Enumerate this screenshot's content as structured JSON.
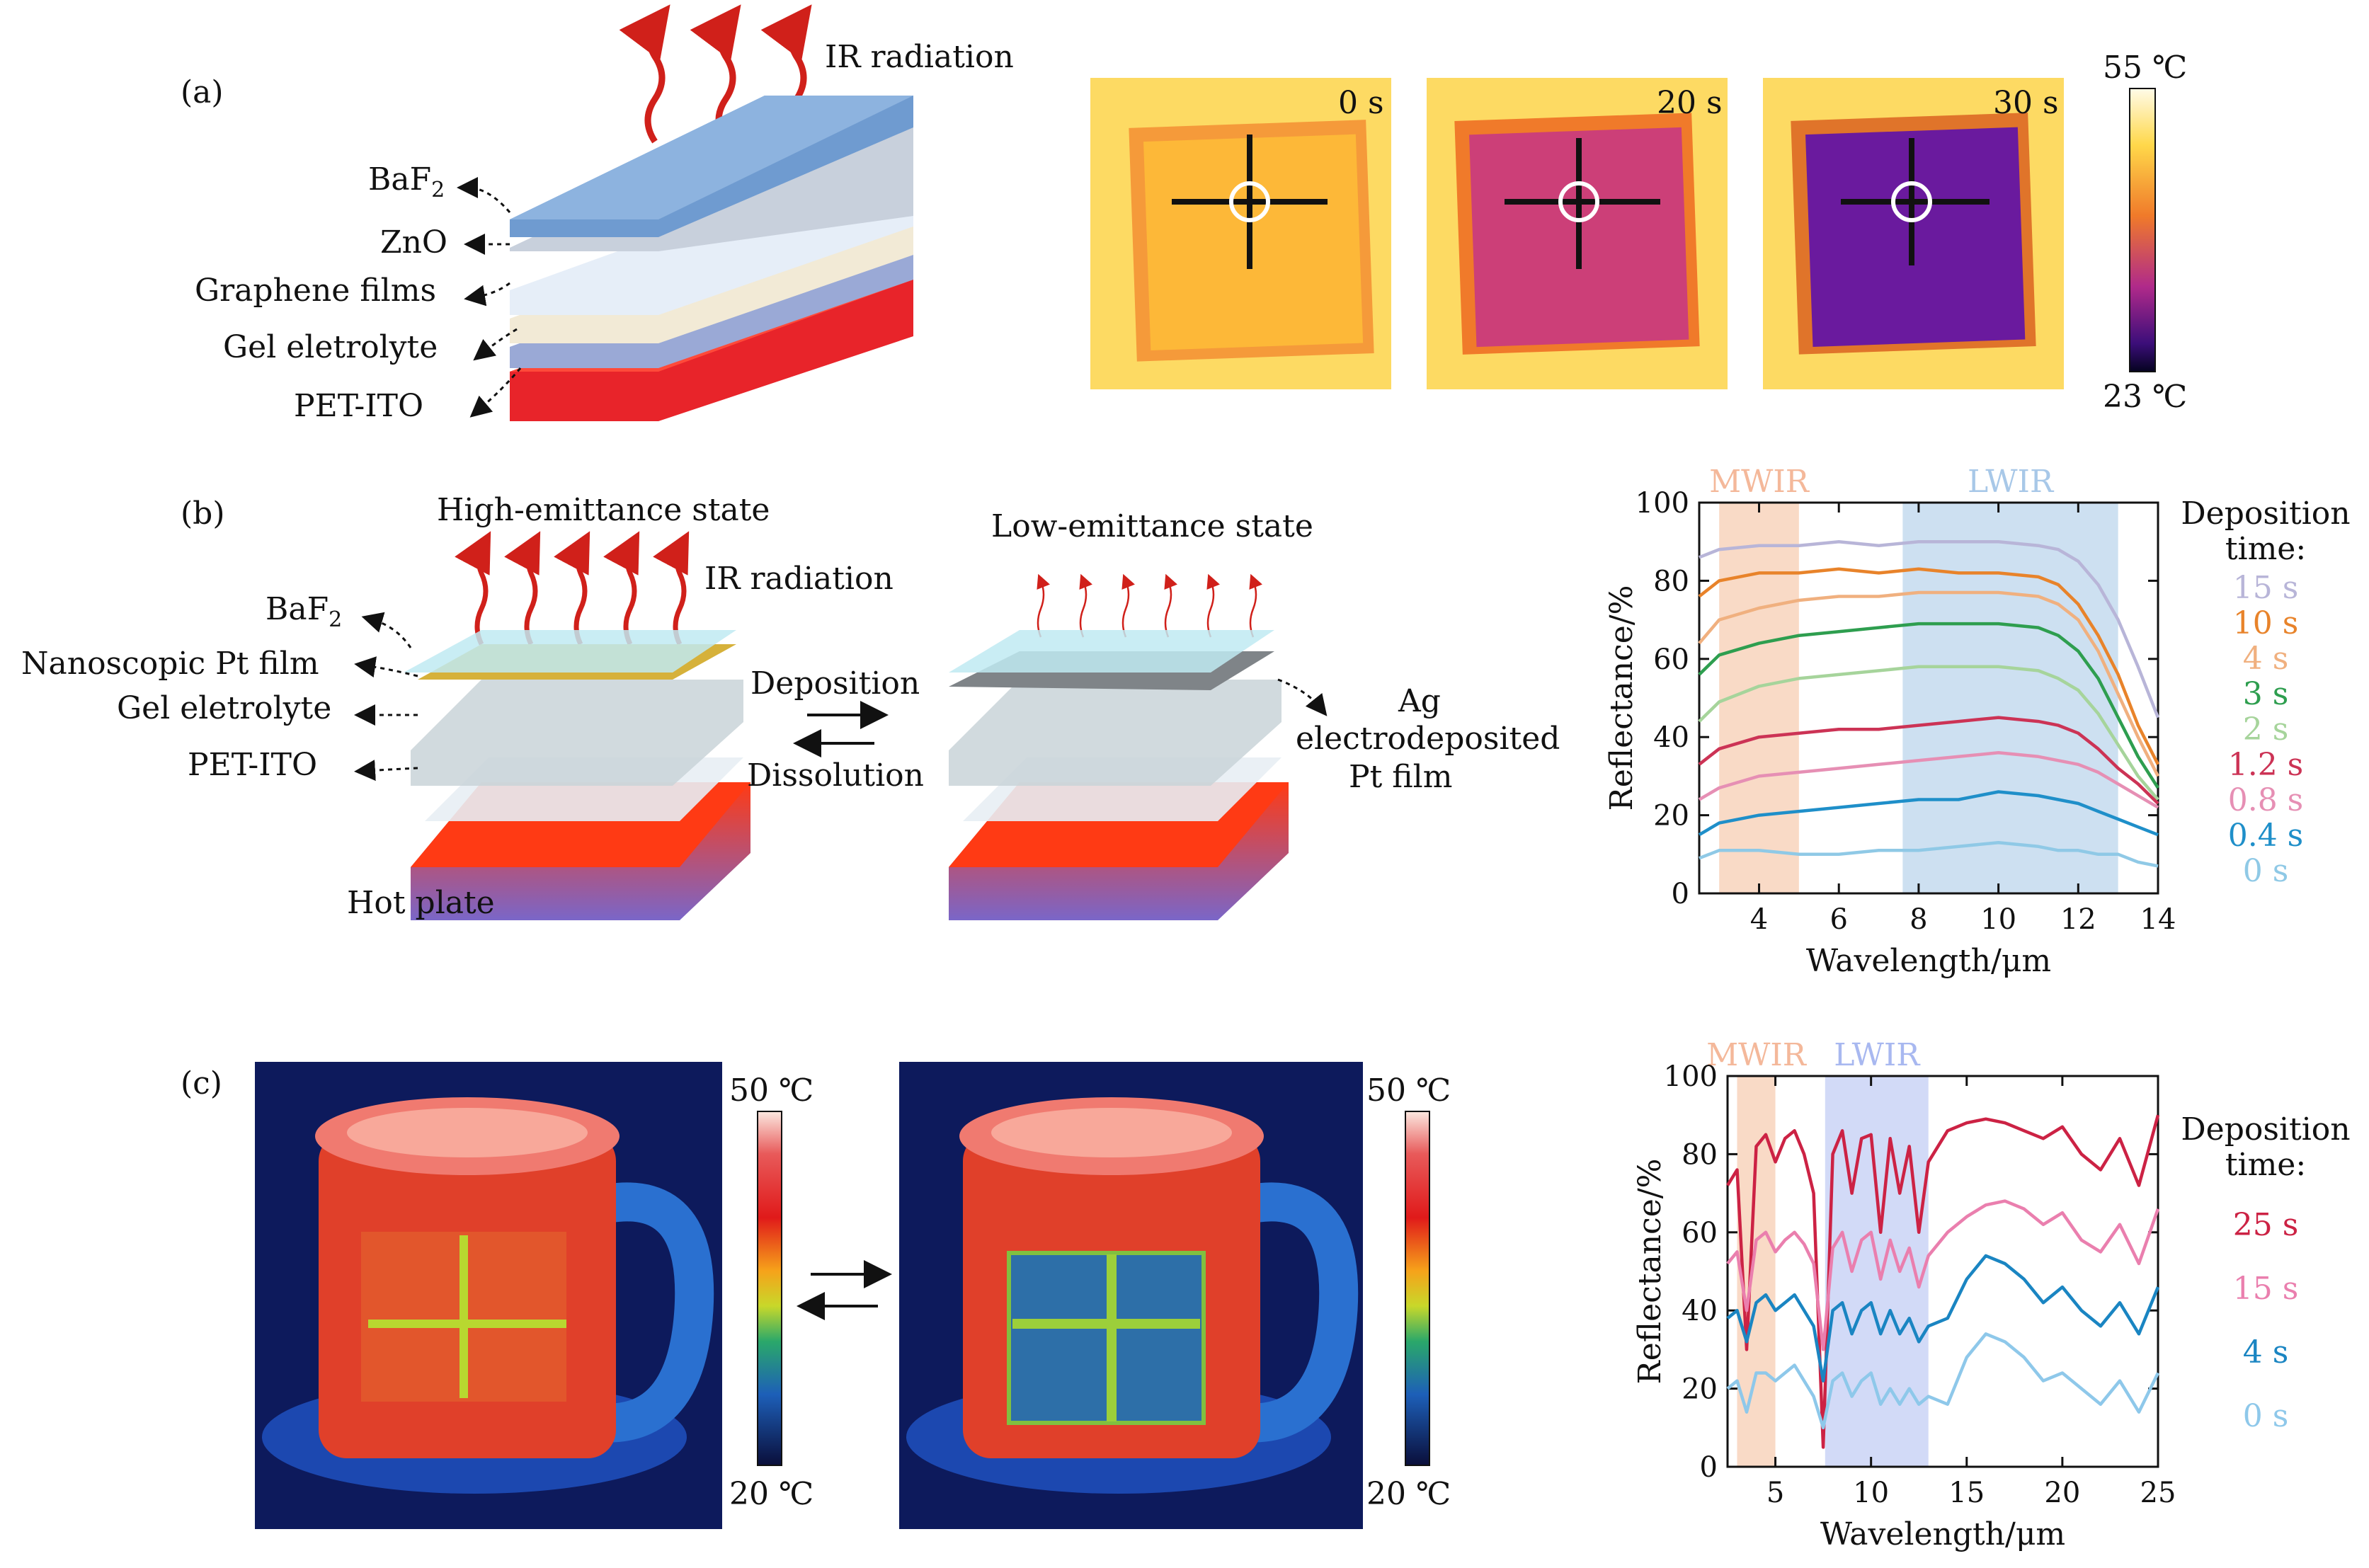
{
  "panel_a": {
    "panel_label": "(a)",
    "ir_label": "IR radiation",
    "layers": [
      "BaF",
      "ZnO",
      "Graphene films",
      "Gel eletrolyte",
      "PET-ITO"
    ],
    "baf_sub": "2",
    "thermal_times": [
      "0 s",
      "20 s",
      "30 s"
    ],
    "colorbar_max": "55 ℃",
    "colorbar_min": "23 ℃"
  },
  "panel_b": {
    "panel_label": "(b)",
    "high_state": "High-emittance state",
    "low_state": "Low-emittance state",
    "ir_label": "IR radiation",
    "layers": [
      "BaF",
      "Nanoscopic Pt film",
      "Gel eletrolyte",
      "PET-ITO"
    ],
    "baf_sub": "2",
    "deposition": "Deposition",
    "dissolution": "Dissolution",
    "ag_label": [
      "Ag",
      "electrodeposited",
      "Pt film"
    ],
    "hot_plate": "Hot plate"
  },
  "panel_c": {
    "panel_label": "(c)",
    "colorbar_max": "50 ℃",
    "colorbar_min": "20 ℃"
  },
  "colors": {
    "s0": "#8fc9e6",
    "s04": "#1f8fc9",
    "s08": "#e68fb4",
    "s12": "#cc3355",
    "s2": "#a6d49b",
    "s3": "#2e9e4f",
    "s4": "#f0b07f",
    "s10": "#e8832a",
    "s15": "#b8b5d8",
    "c25": "#cc2244",
    "c15": "#ea7fae",
    "c4": "#1a85c2",
    "c0": "#8ec8ea",
    "mwir_band": "#f7cdb3",
    "lwir_band": "#bcd6ec",
    "lwir_band_c": "#c3cdf4"
  },
  "chart_data": [
    {
      "type": "line",
      "xlabel": "Wavelength/μm",
      "ylabel": "Reflectance/%",
      "xlim": [
        2.5,
        14
      ],
      "ylim": [
        0,
        100
      ],
      "xticks": [
        4,
        6,
        8,
        10,
        12,
        14
      ],
      "yticks": [
        0,
        20,
        40,
        60,
        80,
        100
      ],
      "bands": [
        {
          "label": "MWIR",
          "x0": 3,
          "x1": 5
        },
        {
          "label": "LWIR",
          "x0": 7.6,
          "x1": 13
        }
      ],
      "legend_title": [
        "Deposition",
        "time:"
      ],
      "x": [
        2.5,
        3,
        4,
        5,
        6,
        7,
        8,
        9,
        10,
        11,
        11.5,
        12,
        12.5,
        13,
        13.5,
        14
      ],
      "series": [
        {
          "name": "15 s",
          "color_key": "s15",
          "values": [
            86,
            88,
            89,
            89,
            90,
            89,
            90,
            90,
            90,
            89,
            88,
            85,
            79,
            70,
            58,
            45
          ]
        },
        {
          "name": "10 s",
          "color_key": "s10",
          "values": [
            76,
            80,
            82,
            82,
            83,
            82,
            83,
            82,
            82,
            81,
            79,
            74,
            66,
            56,
            43,
            33
          ]
        },
        {
          "name": "4 s",
          "color_key": "s4",
          "values": [
            64,
            70,
            73,
            75,
            76,
            76,
            77,
            77,
            77,
            76,
            74,
            70,
            62,
            51,
            40,
            30
          ]
        },
        {
          "name": "3 s",
          "color_key": "s3",
          "values": [
            56,
            61,
            64,
            66,
            67,
            68,
            69,
            69,
            69,
            68,
            66,
            62,
            55,
            45,
            35,
            27
          ]
        },
        {
          "name": "2 s",
          "color_key": "s2",
          "values": [
            44,
            49,
            53,
            55,
            56,
            57,
            58,
            58,
            58,
            57,
            55,
            52,
            46,
            38,
            30,
            24
          ]
        },
        {
          "name": "1.2 s",
          "color_key": "s12",
          "values": [
            33,
            37,
            40,
            41,
            42,
            42,
            43,
            44,
            45,
            44,
            43,
            41,
            37,
            32,
            28,
            23
          ]
        },
        {
          "name": "0.8 s",
          "color_key": "s08",
          "values": [
            24,
            27,
            30,
            31,
            32,
            33,
            34,
            35,
            36,
            35,
            34,
            33,
            31,
            28,
            25,
            22
          ]
        },
        {
          "name": "0.4 s",
          "color_key": "s04",
          "values": [
            15,
            18,
            20,
            21,
            22,
            23,
            24,
            24,
            26,
            25,
            24,
            23,
            21,
            19,
            17,
            15
          ]
        },
        {
          "name": "0 s",
          "color_key": "s0",
          "values": [
            9,
            11,
            11,
            10,
            10,
            11,
            11,
            12,
            13,
            12,
            11,
            11,
            10,
            10,
            8,
            7
          ]
        }
      ]
    },
    {
      "type": "line",
      "xlabel": "Wavelength/μm",
      "ylabel": "Reflectance/%",
      "xlim": [
        2.5,
        25
      ],
      "ylim": [
        0,
        100
      ],
      "xticks": [
        5,
        10,
        15,
        20,
        25
      ],
      "yticks": [
        0,
        20,
        40,
        60,
        80,
        100
      ],
      "bands": [
        {
          "label": "MWIR",
          "x0": 3,
          "x1": 5
        },
        {
          "label": "LWIR",
          "x0": 7.6,
          "x1": 13
        }
      ],
      "legend_title": [
        "Deposition",
        "time:"
      ],
      "x": [
        2.5,
        3,
        3.5,
        4,
        4.5,
        5,
        5.5,
        6,
        6.5,
        7,
        7.5,
        8,
        8.5,
        9,
        9.5,
        10,
        10.5,
        11,
        11.5,
        12,
        12.5,
        13,
        14,
        15,
        16,
        17,
        18,
        19,
        20,
        21,
        22,
        23,
        24,
        25
      ],
      "series": [
        {
          "name": "25 s",
          "color_key": "c25",
          "values": [
            72,
            76,
            30,
            82,
            85,
            78,
            84,
            86,
            80,
            70,
            5,
            80,
            86,
            70,
            84,
            85,
            60,
            84,
            70,
            82,
            60,
            78,
            86,
            88,
            89,
            88,
            86,
            84,
            87,
            80,
            76,
            84,
            72,
            90
          ]
        },
        {
          "name": "15 s",
          "color_key": "c15",
          "values": [
            52,
            55,
            40,
            58,
            60,
            55,
            58,
            60,
            57,
            52,
            30,
            56,
            60,
            50,
            58,
            60,
            48,
            58,
            50,
            56,
            46,
            54,
            60,
            64,
            67,
            68,
            66,
            62,
            65,
            58,
            55,
            62,
            52,
            66
          ]
        },
        {
          "name": "4 s",
          "color_key": "c4",
          "values": [
            38,
            40,
            32,
            42,
            44,
            40,
            42,
            44,
            40,
            36,
            22,
            40,
            42,
            34,
            40,
            42,
            34,
            40,
            34,
            38,
            32,
            36,
            38,
            48,
            54,
            52,
            48,
            42,
            46,
            40,
            36,
            42,
            34,
            46
          ]
        },
        {
          "name": "0 s",
          "color_key": "c0",
          "values": [
            20,
            22,
            14,
            24,
            24,
            22,
            24,
            26,
            22,
            18,
            10,
            22,
            24,
            18,
            22,
            24,
            16,
            20,
            16,
            20,
            16,
            18,
            16,
            28,
            34,
            32,
            28,
            22,
            24,
            20,
            16,
            22,
            14,
            24
          ]
        }
      ]
    }
  ]
}
